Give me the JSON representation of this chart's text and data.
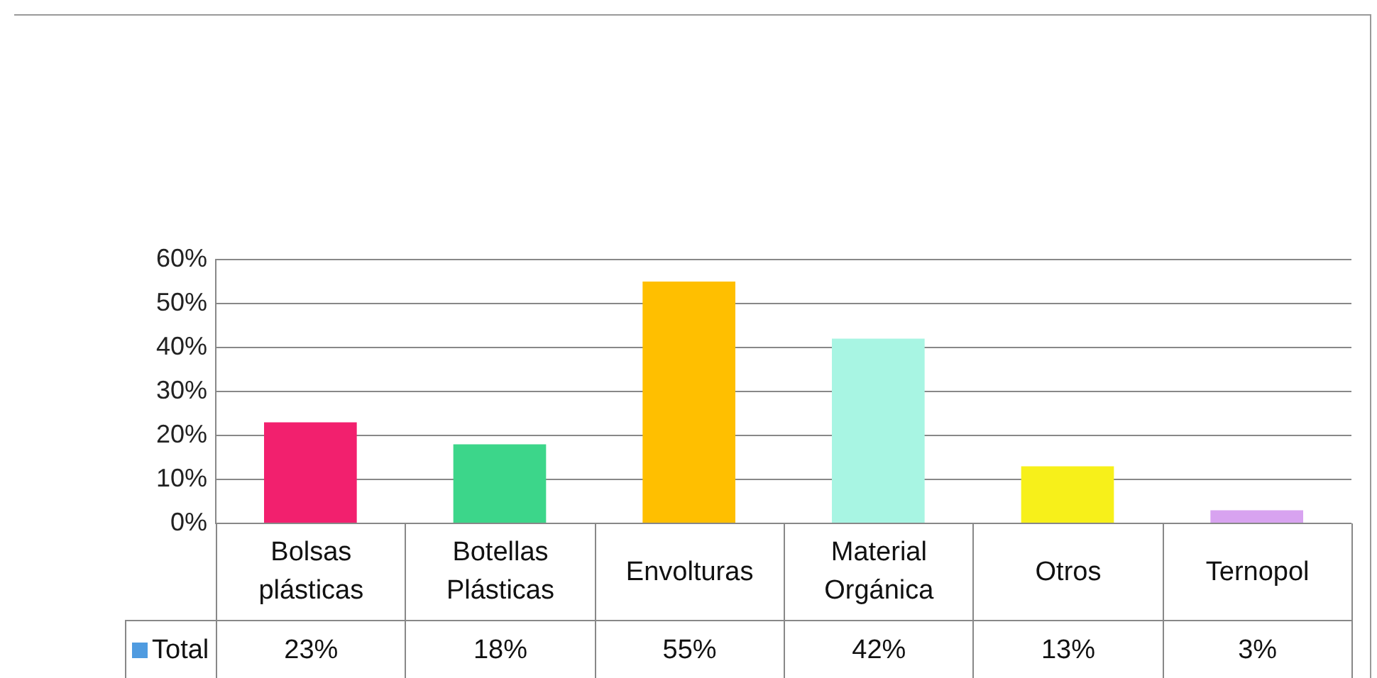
{
  "chart_data": {
    "type": "bar",
    "categories": [
      "Bolsas plásticas",
      "Botellas Plásticas",
      "Envolturas",
      "Material Orgánica",
      "Otros",
      "Ternopol"
    ],
    "series": [
      {
        "name": "Total",
        "color": "#4f9be0",
        "colors": [
          "#f2206e",
          "#3cd68a",
          "#ffbf00",
          "#a8f5e3",
          "#f7f01a",
          "#d8a3f0"
        ],
        "values": [
          23,
          18,
          55,
          42,
          13,
          3
        ],
        "value_labels": [
          "23%",
          "18%",
          "55%",
          "42%",
          "13%",
          "3%"
        ]
      }
    ],
    "ylim": [
      0,
      60
    ],
    "yticks": [
      {
        "value": 0,
        "label": "0%"
      },
      {
        "value": 10,
        "label": "10%"
      },
      {
        "value": 20,
        "label": "20%"
      },
      {
        "value": 30,
        "label": "30%"
      },
      {
        "value": 40,
        "label": "40%"
      },
      {
        "value": 50,
        "label": "50%"
      },
      {
        "value": 60,
        "label": "60%"
      }
    ],
    "grid": "y",
    "legend": "bottom"
  }
}
